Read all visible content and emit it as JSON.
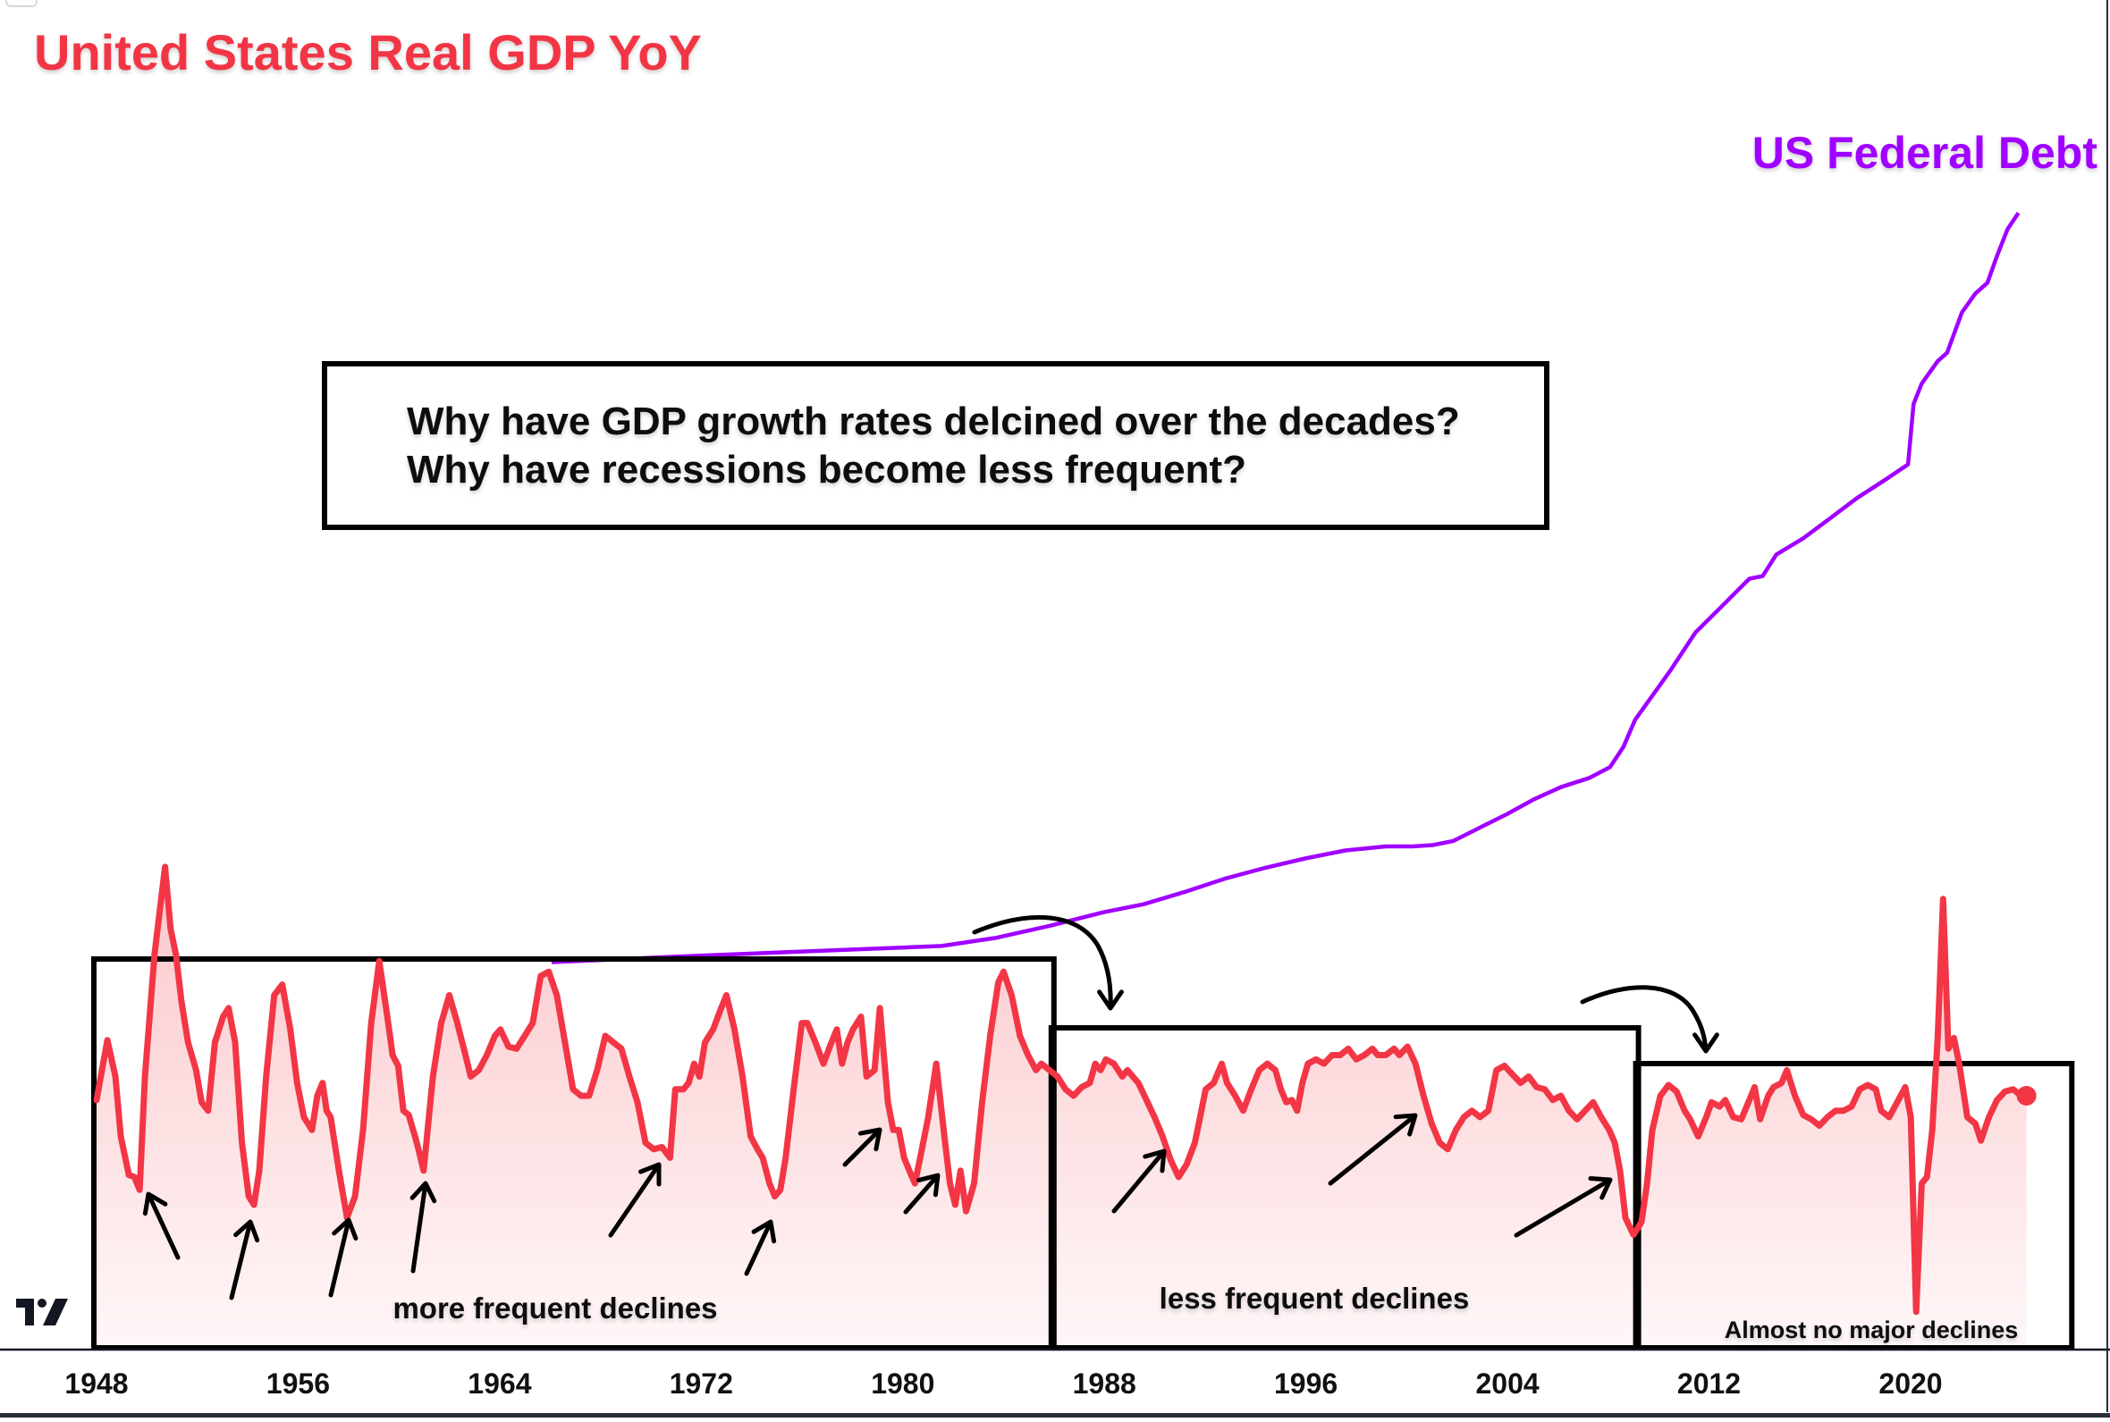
{
  "chart_data": {
    "type": "line",
    "title": "United States Real GDP YoY",
    "xlabel": "",
    "ylabel": "",
    "x_ticks": [
      "1948",
      "1956",
      "1964",
      "1972",
      "1980",
      "1988",
      "1996",
      "2004",
      "2012",
      "2020"
    ],
    "xlim": [
      1948,
      2026
    ],
    "grid": false,
    "series": [
      {
        "name": "United States Real GDP YoY",
        "unit": "%",
        "color": "#f23645",
        "x": [
          1948.0,
          1948.43,
          1948.75,
          1948.96,
          1949.28,
          1949.5,
          1949.71,
          1949.92,
          1950.3,
          1950.72,
          1950.94,
          1951.15,
          1951.37,
          1951.63,
          1951.95,
          1952.17,
          1952.43,
          1952.7,
          1953.02,
          1953.24,
          1953.5,
          1953.77,
          1954.04,
          1954.25,
          1954.46,
          1954.73,
          1955.05,
          1955.37,
          1955.69,
          1955.96,
          1956.23,
          1956.55,
          1956.76,
          1956.97,
          1957.13,
          1957.29,
          1957.62,
          1957.94,
          1958.26,
          1958.58,
          1958.9,
          1959.22,
          1959.54,
          1959.75,
          1959.97,
          1960.18,
          1960.39,
          1960.71,
          1960.98,
          1961.35,
          1961.68,
          1962.0,
          1962.32,
          1962.64,
          1962.85,
          1963.17,
          1963.49,
          1963.81,
          1964.03,
          1964.35,
          1964.67,
          1964.99,
          1965.31,
          1965.63,
          1965.95,
          1966.27,
          1966.59,
          1966.91,
          1967.23,
          1967.55,
          1967.87,
          1968.19,
          1968.51,
          1968.83,
          1969.15,
          1969.47,
          1969.79,
          1970.12,
          1970.44,
          1970.76,
          1970.97,
          1971.29,
          1971.5,
          1971.72,
          1971.93,
          1972.15,
          1972.47,
          1972.79,
          1973.0,
          1973.32,
          1973.64,
          1973.96,
          1974.23,
          1974.44,
          1974.71,
          1974.92,
          1975.14,
          1975.35,
          1975.67,
          1975.99,
          1976.21,
          1976.53,
          1976.85,
          1977.17,
          1977.38,
          1977.59,
          1977.81,
          1978.02,
          1978.34,
          1978.56,
          1978.88,
          1979.09,
          1979.41,
          1979.62,
          1979.84,
          1980.05,
          1980.26,
          1980.48,
          1980.69,
          1981.01,
          1981.33,
          1981.65,
          1981.87,
          1982.08,
          1982.29,
          1982.51,
          1982.83,
          1983.15,
          1983.47,
          1983.79,
          1984.0,
          1984.32,
          1984.65,
          1984.97,
          1985.29,
          1985.5,
          1985.82,
          1986.14,
          1986.46,
          1986.78,
          1987.1,
          1987.42,
          1987.64,
          1987.85,
          1988.06,
          1988.38,
          1988.71,
          1988.92,
          1989.13,
          1989.35,
          1989.67,
          1989.99,
          1990.31,
          1990.63,
          1990.95,
          1991.27,
          1991.59,
          1991.8,
          1992.02,
          1992.34,
          1992.66,
          1992.87,
          1993.19,
          1993.51,
          1993.83,
          1994.15,
          1994.47,
          1994.79,
          1995.01,
          1995.22,
          1995.44,
          1995.65,
          1995.86,
          1996.08,
          1996.4,
          1996.72,
          1997.04,
          1997.36,
          1997.68,
          1998.0,
          1998.32,
          1998.64,
          1998.85,
          1999.17,
          1999.5,
          1999.71,
          2000.03,
          2000.35,
          2000.67,
          2000.99,
          2001.31,
          2001.63,
          2001.95,
          2002.27,
          2002.59,
          2002.91,
          2003.24,
          2003.56,
          2003.88,
          2004.2,
          2004.52,
          2004.84,
          2005.16,
          2005.48,
          2005.8,
          2006.12,
          2006.44,
          2006.76,
          2007.08,
          2007.4,
          2007.72,
          2008.04,
          2008.26,
          2008.47,
          2008.68,
          2009.0,
          2009.32,
          2009.54,
          2009.75,
          2010.07,
          2010.39,
          2010.71,
          2011.03,
          2011.25,
          2011.57,
          2011.89,
          2012.1,
          2012.42,
          2012.64,
          2012.96,
          2013.28,
          2013.6,
          2013.81,
          2014.03,
          2014.35,
          2014.56,
          2014.88,
          2015.09,
          2015.41,
          2015.74,
          2016.06,
          2016.38,
          2016.7,
          2017.02,
          2017.34,
          2017.66,
          2017.98,
          2018.3,
          2018.62,
          2018.83,
          2019.15,
          2019.47,
          2019.79,
          2020.01,
          2020.22,
          2020.44,
          2020.65,
          2020.86,
          2021.08,
          2021.29,
          2021.5,
          2021.72,
          2021.93,
          2022.25,
          2022.57,
          2022.79,
          2023.11,
          2023.43,
          2023.75,
          2024.07,
          2024.39,
          2024.6
        ],
        "values": [
          2.6,
          5.4,
          3.7,
          0.9,
          -0.9,
          -1.0,
          -1.6,
          3.7,
          9.4,
          13.5,
          10.6,
          9.4,
          7.2,
          5.3,
          4.0,
          2.5,
          2.1,
          5.3,
          6.5,
          6.9,
          5.3,
          0.6,
          -1.9,
          -2.3,
          -0.7,
          3.7,
          7.5,
          8.0,
          5.9,
          3.4,
          1.8,
          1.2,
          2.8,
          3.4,
          2.1,
          1.8,
          -0.7,
          -2.9,
          -1.9,
          1.2,
          6.2,
          9.1,
          6.5,
          4.7,
          4.2,
          2.1,
          1.9,
          0.6,
          -0.7,
          3.7,
          6.2,
          7.5,
          6.2,
          4.7,
          3.7,
          4.0,
          4.7,
          5.6,
          5.9,
          5.1,
          5.0,
          5.6,
          6.2,
          8.4,
          8.6,
          7.5,
          5.3,
          3.1,
          2.8,
          2.8,
          4.0,
          5.6,
          5.3,
          5.0,
          3.7,
          2.5,
          0.6,
          0.3,
          0.4,
          -0.1,
          3.1,
          3.1,
          3.4,
          4.3,
          3.7,
          5.3,
          5.9,
          6.9,
          7.5,
          5.9,
          3.7,
          0.9,
          0.3,
          -0.1,
          -1.3,
          -1.9,
          -1.6,
          -0.1,
          3.1,
          6.2,
          6.2,
          5.3,
          4.3,
          5.3,
          5.9,
          4.3,
          5.3,
          5.9,
          6.5,
          3.7,
          4.0,
          6.9,
          2.5,
          1.2,
          1.2,
          -0.1,
          -0.7,
          -1.3,
          -0.1,
          1.8,
          4.3,
          0.9,
          -1.3,
          -2.3,
          -0.7,
          -2.6,
          -1.3,
          2.5,
          5.6,
          8.1,
          8.6,
          7.5,
          5.6,
          4.7,
          4.0,
          4.3,
          4.0,
          3.7,
          3.1,
          2.8,
          3.2,
          3.4,
          4.3,
          4.0,
          4.5,
          4.3,
          3.7,
          4.0,
          3.7,
          3.4,
          2.6,
          1.8,
          0.9,
          -0.2,
          -1.0,
          -0.4,
          0.6,
          1.8,
          3.1,
          3.4,
          4.3,
          3.4,
          2.8,
          2.1,
          3.1,
          4.0,
          4.3,
          4.0,
          3.1,
          2.5,
          2.6,
          2.1,
          3.4,
          4.3,
          4.5,
          4.3,
          4.7,
          4.7,
          5.0,
          4.5,
          4.7,
          5.0,
          4.7,
          4.7,
          5.0,
          4.7,
          5.1,
          4.3,
          2.8,
          1.5,
          0.6,
          0.3,
          1.2,
          1.8,
          2.1,
          1.8,
          2.1,
          4.0,
          4.2,
          3.8,
          3.4,
          3.7,
          3.2,
          3.1,
          2.6,
          2.8,
          2.1,
          1.7,
          2.1,
          2.5,
          1.8,
          1.2,
          0.6,
          -0.7,
          -2.9,
          -3.7,
          -3.1,
          -1.3,
          1.2,
          2.8,
          3.3,
          3.0,
          2.1,
          1.7,
          0.9,
          1.8,
          2.5,
          2.3,
          2.6,
          1.8,
          1.7,
          2.6,
          3.2,
          1.7,
          2.8,
          3.2,
          3.4,
          4.0,
          2.8,
          1.9,
          1.7,
          1.4,
          1.8,
          2.1,
          2.1,
          2.3,
          3.1,
          3.3,
          3.1,
          2.1,
          1.8,
          2.5,
          3.2,
          1.8,
          -7.3,
          -1.3,
          -1.0,
          1.2,
          5.6,
          12.0,
          5.0,
          5.5,
          4.3,
          1.8,
          1.5,
          0.7,
          1.8,
          2.6,
          3.0,
          3.1,
          2.8,
          2.8
        ]
      },
      {
        "name": "US Federal Debt",
        "unit": "USD trillions",
        "color": "#a000ff",
        "x": [
          1966.06,
          1970.86,
          1976.21,
          1981.55,
          1983.68,
          1985.82,
          1987.96,
          1989.56,
          1991.16,
          1992.77,
          1994.37,
          1995.97,
          1997.57,
          1999.17,
          2000.24,
          2001.04,
          2001.85,
          2002.91,
          2003.98,
          2005.05,
          2006.12,
          2007.26,
          2008.07,
          2008.6,
          2009.06,
          2010.47,
          2011.46,
          2012.53,
          2013.6,
          2014.13,
          2014.67,
          2015.74,
          2016.81,
          2017.87,
          2018.94,
          2019.9,
          2020.12,
          2020.44,
          2021.08,
          2021.45,
          2022.04,
          2022.57,
          2023.05,
          2023.43,
          2023.85,
          2024.28
        ],
        "values": [
          0.31,
          0.56,
          0.81,
          1.06,
          1.43,
          1.99,
          2.62,
          2.99,
          3.55,
          4.17,
          4.67,
          5.11,
          5.48,
          5.67,
          5.67,
          5.73,
          5.92,
          6.54,
          7.16,
          7.85,
          8.41,
          8.84,
          9.34,
          10.27,
          11.52,
          13.82,
          15.57,
          16.81,
          18.06,
          18.18,
          19.18,
          19.93,
          20.86,
          21.79,
          22.6,
          23.35,
          26.15,
          27.09,
          28.14,
          28.52,
          30.39,
          31.26,
          31.76,
          33.0,
          34.25,
          34.99
        ]
      }
    ],
    "annotations": {
      "question_lines": [
        "Why have GDP growth rates delcined over the decades?",
        "Why have recessions become less frequent?"
      ],
      "regions": [
        {
          "label": "more frequent declines",
          "start": 1948,
          "end": 1986
        },
        {
          "label": "less frequent declines",
          "start": 1986,
          "end": 2009.2
        },
        {
          "label": "Almost no major declines",
          "start": 2009.2,
          "end": 2026.4
        }
      ],
      "decline_arrows_targets": [
        1949.7,
        1954.2,
        1957.9,
        1960.9,
        1970.6,
        1974.8,
        1980.3,
        1982.4,
        1991.0,
        2001.6,
        2009.0
      ]
    },
    "legend": [
      {
        "label": "United States Real GDP YoY",
        "position": "top-left",
        "color": "#f23645"
      },
      {
        "label": "US Federal Debt",
        "position": "top-right",
        "color": "#a000ff"
      }
    ]
  },
  "branding": {
    "logo": "tradingview-logo",
    "logo_text": "TV"
  }
}
